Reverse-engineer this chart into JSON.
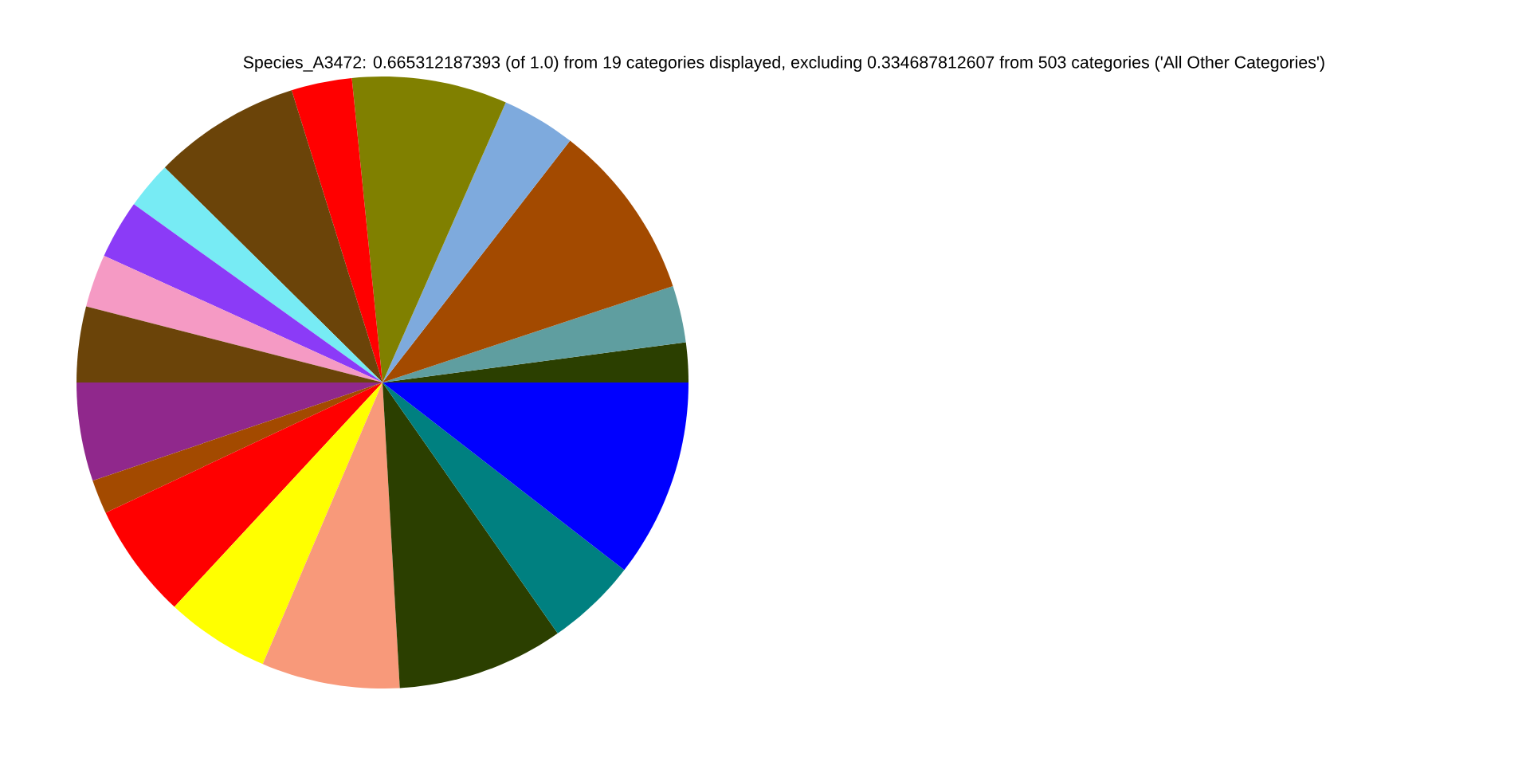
{
  "chart_data": {
    "type": "pie",
    "title": "Species_A3472: 0.665312187393 (of 1.0) from 19 categories displayed, excluding 0.334687812607 from 503 categories ('All Other Categories')",
    "categories": [
      null,
      null,
      null,
      null,
      null,
      null,
      null,
      null,
      null,
      null,
      null,
      null,
      null,
      null,
      null,
      null,
      null,
      null,
      null
    ],
    "values": [
      2.1,
      3.0,
      9.4,
      3.9,
      8.2,
      3.2,
      7.8,
      2.5,
      3.1,
      2.8,
      4.0,
      5.2,
      1.8,
      6.1,
      5.5,
      7.3,
      8.8,
      4.8,
      10.5
    ],
    "colors": [
      "#2b3f00",
      "#5f9ea0",
      "#a34a00",
      "#7eaadd",
      "#808000",
      "#ff0000",
      "#6b4409",
      "#77ebf4",
      "#8b3bf7",
      "#f59ac4",
      "#6b4409",
      "#90288c",
      "#a34a00",
      "#ff0000",
      "#ffff00",
      "#f8997a",
      "#2b3f00",
      "#008080",
      "#0000ff"
    ]
  }
}
